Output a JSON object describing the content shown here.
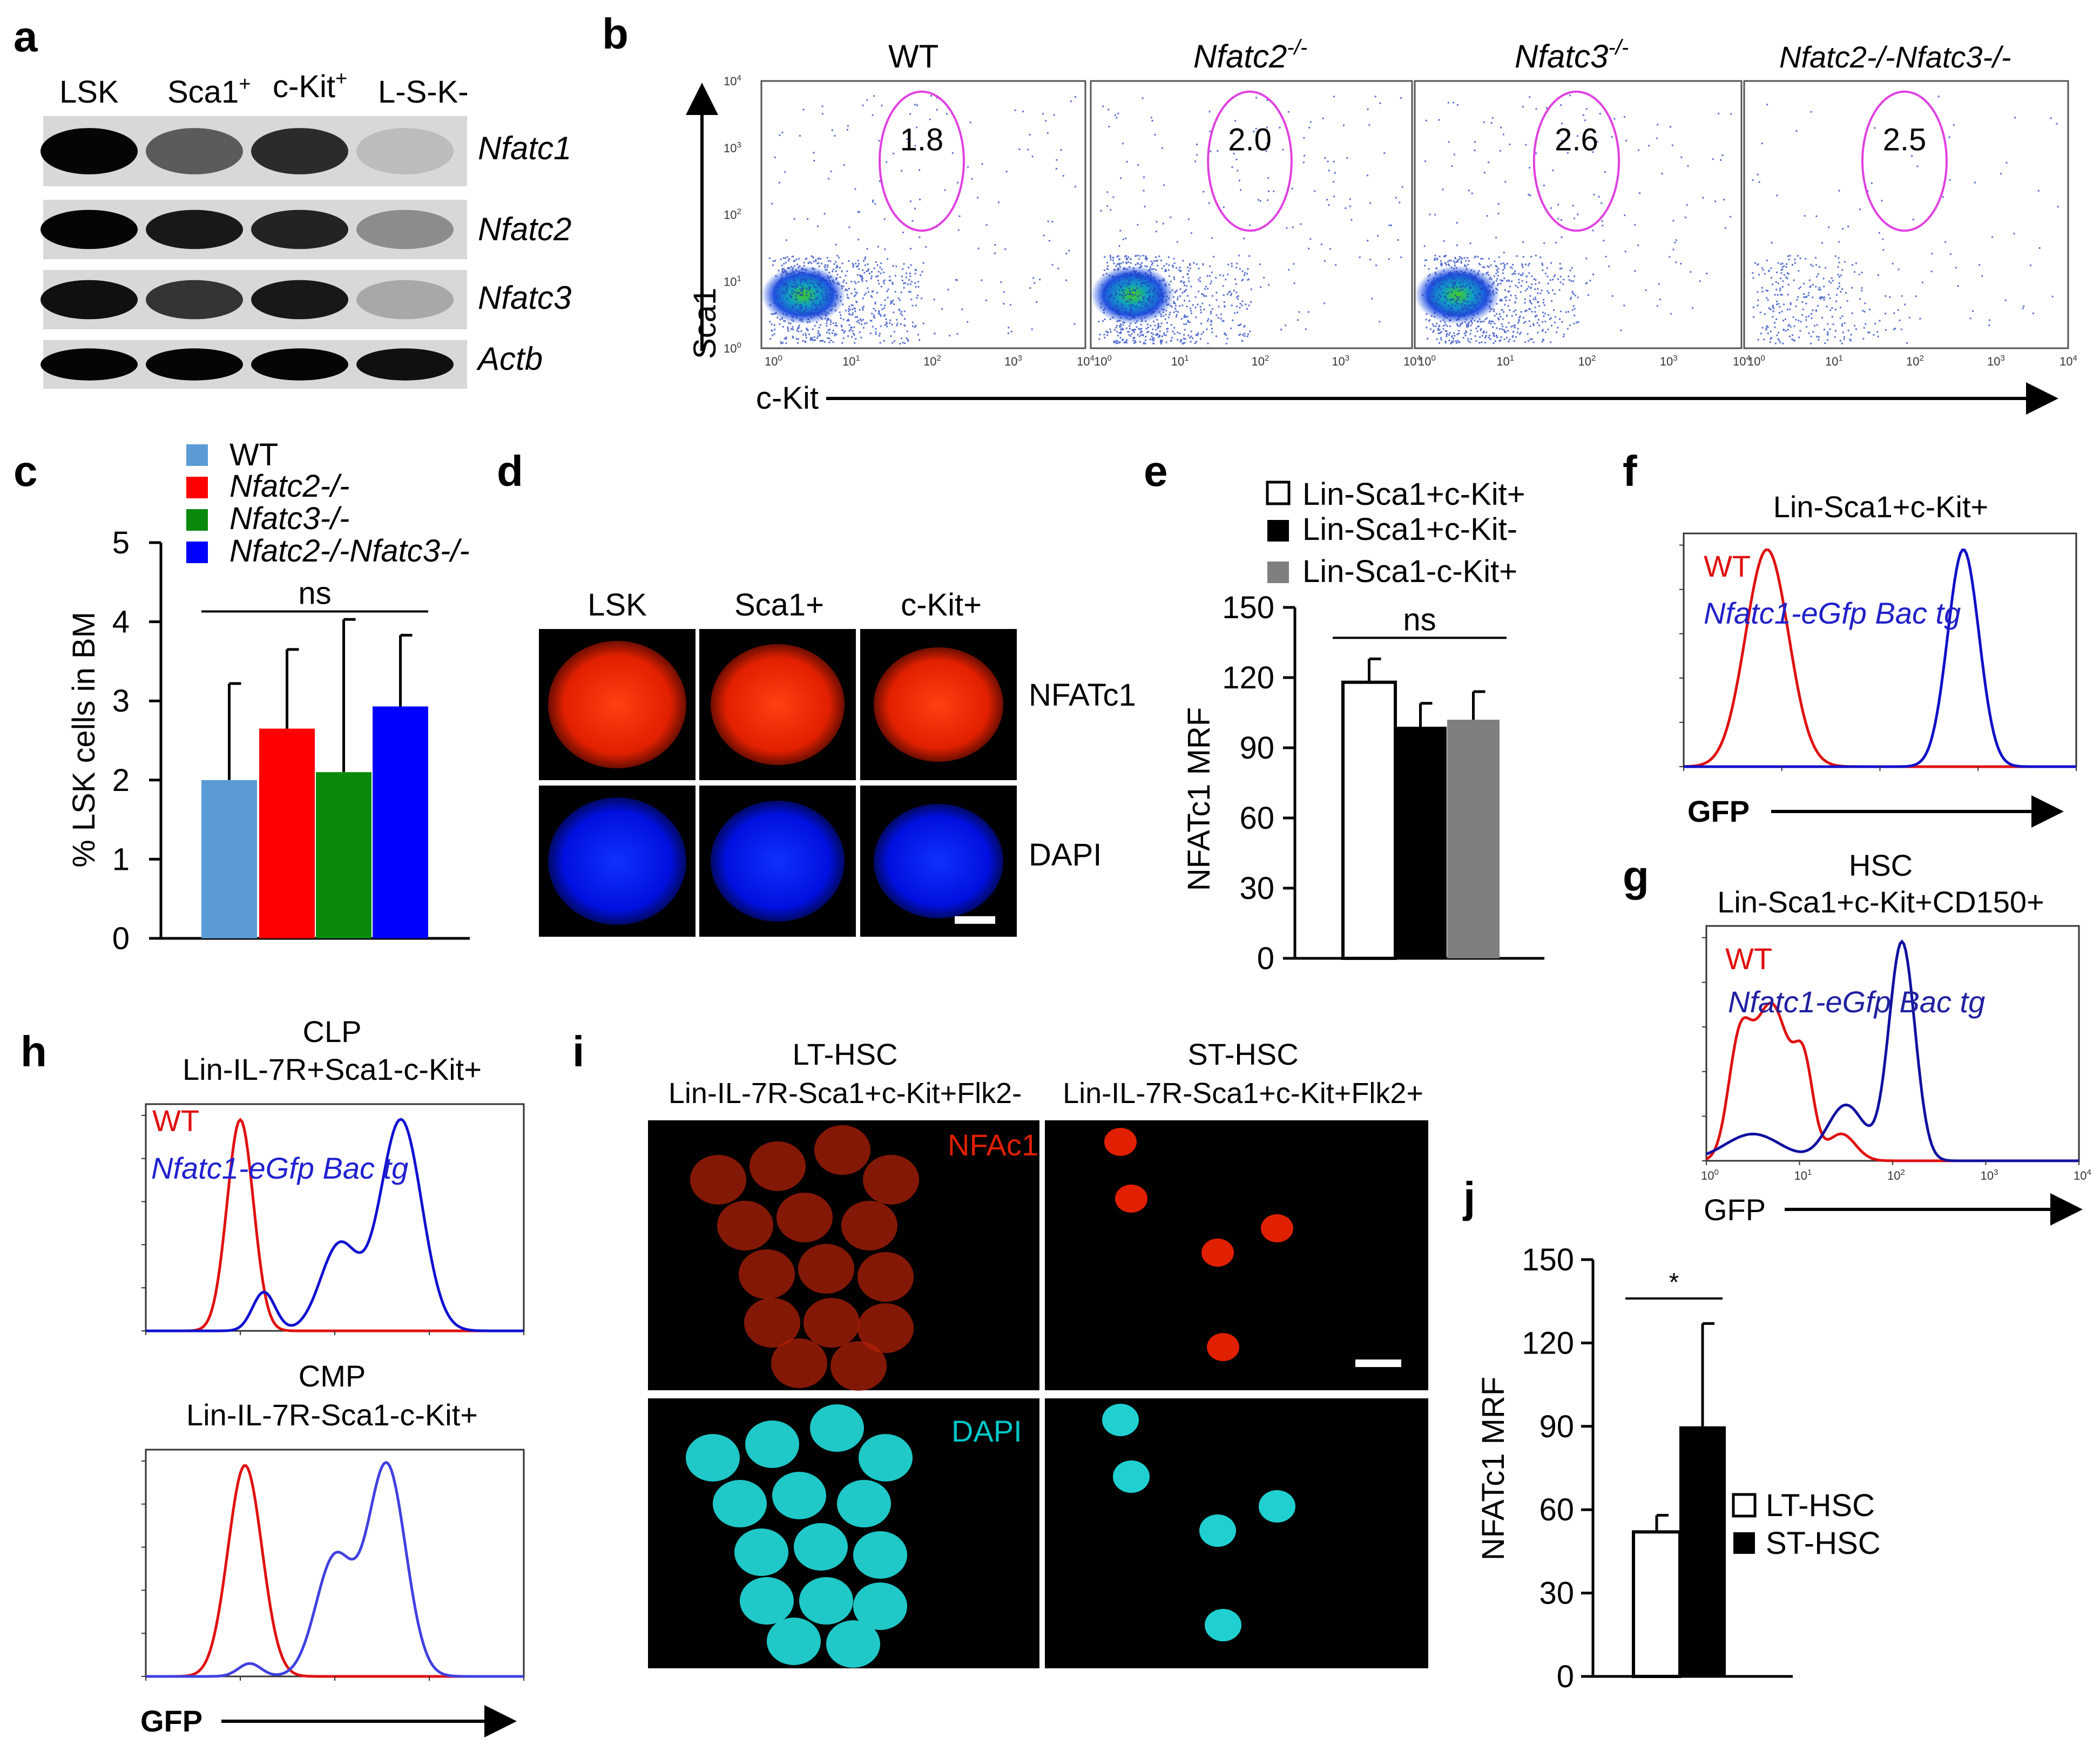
{
  "panels": {
    "a": {
      "letter": "a",
      "lanes": [
        "LSK",
        "Sca1",
        "c-Kit",
        "L-S-K-"
      ],
      "lane_sups": [
        "",
        "+",
        "+",
        ""
      ],
      "genes": [
        "Nfatc1",
        "Nfatc2",
        "Nfatc3",
        "Actb"
      ],
      "band_intensity": [
        [
          1.0,
          0.55,
          0.8,
          0.05
        ],
        [
          1.0,
          0.9,
          0.85,
          0.3
        ],
        [
          0.95,
          0.75,
          0.9,
          0.15
        ],
        [
          1.0,
          1.0,
          1.0,
          0.95
        ]
      ]
    },
    "b": {
      "letter": "b",
      "plots": [
        {
          "title": "WT",
          "value": "1.8",
          "italic": false,
          "density": 1.0
        },
        {
          "title": "Nfatc2",
          "title_sup": "-/-",
          "value": "2.0",
          "italic": true,
          "density": 1.0
        },
        {
          "title": "Nfatc3",
          "title_sup": "-/-",
          "value": "2.6",
          "italic": true,
          "density": 1.0
        },
        {
          "title": "Nfatc2-/-Nfatc3-/-",
          "value": "2.5",
          "italic": true,
          "density": 0.4
        }
      ],
      "y_label": "Sca1",
      "x_label": "c-Kit",
      "y_ticks": [
        "10",
        "10",
        "10",
        "10",
        "10"
      ],
      "y_tick_exps": [
        "0",
        "1",
        "2",
        "3",
        "4"
      ],
      "x_ticks": [
        "10",
        "10",
        "10",
        "10",
        "10"
      ],
      "x_tick_exps": [
        "0",
        "1",
        "2",
        "3",
        "4"
      ]
    },
    "c": {
      "letter": "c",
      "legend": [
        "WT",
        "Nfatc2-/-",
        "Nfatc3-/-",
        "Nfatc2-/-Nfatc3-/-"
      ],
      "y_label": "% LSK cells in BM",
      "sig": "ns",
      "chart_data": {
        "type": "bar",
        "categories": [
          "WT",
          "Nfatc2-/-",
          "Nfatc3-/-",
          "Nfatc2-/-Nfatc3-/-"
        ],
        "values": [
          2.0,
          2.65,
          2.1,
          2.93
        ],
        "errors": [
          1.22,
          1.0,
          1.93,
          0.9
        ],
        "colors": [
          "#5b9bd5",
          "#ff0000",
          "#0a8a0a",
          "#0000ff"
        ],
        "ylim": [
          0,
          5
        ],
        "yticks": [
          "0",
          "1",
          "2",
          "3",
          "4",
          "5"
        ],
        "ylabel": "% LSK cells in BM"
      }
    },
    "d": {
      "letter": "d",
      "cols": [
        "LSK",
        "Sca1+",
        "c-Kit+"
      ],
      "rows": [
        "NFATc1",
        "DAPI"
      ]
    },
    "e": {
      "letter": "e",
      "legend": [
        "Lin-Sca1+c-Kit+",
        "Lin-Sca1+c-Kit-",
        "Lin-Sca1-c-Kit+"
      ],
      "sig": "ns",
      "chart_data": {
        "type": "bar",
        "categories": [
          "Lin-Sca1+c-Kit+",
          "Lin-Sca1+c-Kit-",
          "Lin-Sca1-c-Kit+"
        ],
        "values": [
          118,
          99,
          102
        ],
        "errors": [
          10,
          10,
          12
        ],
        "colors": [
          "#ffffff",
          "#000000",
          "#7f7f7f"
        ],
        "ylim": [
          0,
          150
        ],
        "yticks": [
          "0",
          "30",
          "60",
          "90",
          "120",
          "150"
        ],
        "ylabel": "NFATc1 MRF"
      }
    },
    "f": {
      "letter": "f",
      "title": "Lin-Sca1+c-Kit+",
      "wt": "WT",
      "tg": "Nfatc1-eGfp Bac tg",
      "x_label": "GFP",
      "chart_data": {
        "type": "line",
        "x_scale": "log10 0-4",
        "series": [
          {
            "name": "WT",
            "color": "#e01010",
            "mode": 0.85,
            "peak": 98
          },
          {
            "name": "Nfatc1-eGfp Bac tg",
            "color": "#1010c8",
            "mode": 2.85,
            "peak": 98
          }
        ]
      }
    },
    "g": {
      "letter": "g",
      "title1": "HSC",
      "title2": "Lin-Sca1+c-Kit+CD150+",
      "wt": "WT",
      "tg": "Nfatc1-eGfp Bac tg",
      "x_label": "GFP",
      "x_ticks": [
        "10",
        "10",
        "10",
        "10",
        "10"
      ],
      "x_tick_exps": [
        "0",
        "1",
        "2",
        "3",
        "4"
      ],
      "chart_data": {
        "type": "line",
        "x_scale": "log10 0-4",
        "series": [
          {
            "name": "WT",
            "color": "#e01010",
            "mode": 0.7,
            "peak": 70
          },
          {
            "name": "Nfatc1-eGfp Bac tg",
            "color": "#1010a0",
            "mode": 2.1,
            "peak": 98
          }
        ]
      }
    },
    "h": {
      "letter": "h",
      "top_title1": "CLP",
      "top_title2": "Lin-IL-7R+Sca1-c-Kit+",
      "top_wt": "WT",
      "top_tg": "Nfatc1-eGfp Bac tg",
      "bottom_title1": "CMP",
      "bottom_title2": "Lin-IL-7R-Sca1-c-Kit+",
      "x_label": "GFP",
      "chart_data": [
        {
          "type": "line",
          "name": "CLP",
          "series": [
            {
              "name": "WT",
              "color": "#e01010",
              "mode": 1.0,
              "peak": 98
            },
            {
              "name": "Nfatc1-eGfp Bac tg",
              "color": "#1010d0",
              "mode": 2.7,
              "peak": 98
            }
          ]
        },
        {
          "type": "line",
          "name": "CMP",
          "series": [
            {
              "name": "WT",
              "color": "#e01010",
              "mode": 1.05,
              "peak": 98
            },
            {
              "name": "Nfatc1-eGfp Bac tg",
              "color": "#4040e0",
              "mode": 2.55,
              "peak": 98
            }
          ]
        }
      ]
    },
    "i": {
      "letter": "i",
      "lt_title1": "LT-HSC",
      "lt_title2": "Lin-IL-7R-Sca1+c-Kit+Flk2-",
      "st_title1": "ST-HSC",
      "st_title2": "Lin-IL-7R-Sca1+c-Kit+Flk2+",
      "top_label": "NFAc1",
      "bottom_label": "DAPI"
    },
    "j": {
      "letter": "j",
      "legend": [
        "LT-HSC",
        "ST-HSC"
      ],
      "sig": "*",
      "chart_data": {
        "type": "bar",
        "categories": [
          "LT-HSC",
          "ST-HSC"
        ],
        "values": [
          52,
          90
        ],
        "errors": [
          6,
          37
        ],
        "colors": [
          "#ffffff",
          "#000000"
        ],
        "ylim": [
          0,
          150
        ],
        "yticks": [
          "0",
          "30",
          "60",
          "90",
          "120",
          "150"
        ],
        "ylabel": "NFATc1 MRF"
      }
    }
  }
}
